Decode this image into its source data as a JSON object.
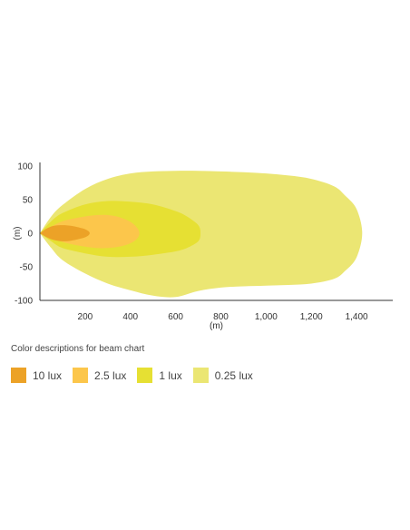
{
  "chart_data": {
    "type": "area",
    "title": "",
    "xlabel": "(m)",
    "ylabel": "(m)",
    "xlim": [
      0,
      1560
    ],
    "ylim": [
      -100,
      100
    ],
    "xticks": [
      200,
      400,
      600,
      800,
      1000,
      1200,
      1400
    ],
    "xtick_labels": [
      "200",
      "400",
      "600",
      "800",
      "1,000",
      "1,200",
      "1,400"
    ],
    "yticks": [
      100,
      50,
      0,
      -50,
      -100
    ],
    "ytick_labels": [
      "100",
      "50",
      "0",
      "-50",
      "-100"
    ],
    "grid": false,
    "series": [
      {
        "name": "0.25 lux",
        "color": "#ebe673",
        "x": [
          0,
          50,
          100,
          200,
          300,
          400,
          500,
          600,
          700,
          800,
          900,
          1000,
          1100,
          1200,
          1300,
          1350,
          1400,
          1425,
          1400,
          1350,
          1300,
          1200,
          1100,
          1000,
          900,
          800,
          700,
          600,
          500,
          400,
          300,
          200,
          100,
          50,
          0
        ],
        "y": [
          0,
          25,
          42,
          66,
          81,
          89,
          92,
          93,
          93,
          92,
          91,
          89,
          86,
          81,
          70,
          56,
          36,
          0,
          -36,
          -56,
          -68,
          -75,
          -77,
          -78,
          -79,
          -81,
          -86,
          -95,
          -93,
          -85,
          -75,
          -60,
          -40,
          -22,
          0
        ]
      },
      {
        "name": "1 lux",
        "color": "#e6e033",
        "x": [
          0,
          50,
          100,
          200,
          300,
          400,
          500,
          600,
          650,
          700,
          710,
          700,
          650,
          600,
          500,
          400,
          300,
          200,
          100,
          50,
          0
        ],
        "y": [
          0,
          18,
          30,
          43,
          48,
          47,
          43,
          33,
          25,
          12,
          0,
          -12,
          -22,
          -27,
          -32,
          -35,
          -35,
          -30,
          -22,
          -12,
          0
        ],
        "label": "1 lux"
      },
      {
        "name": "2.5 lux",
        "color": "#fcc64b",
        "x": [
          0,
          50,
          100,
          150,
          200,
          250,
          300,
          350,
          400,
          430,
          440,
          430,
          400,
          350,
          300,
          250,
          200,
          150,
          100,
          50,
          0
        ],
        "y": [
          0,
          10,
          18,
          22,
          25,
          27,
          27,
          24,
          17,
          8,
          0,
          -8,
          -15,
          -20,
          -22,
          -22,
          -20,
          -17,
          -13,
          -7,
          0
        ]
      },
      {
        "name": "10 lux",
        "color": "#eca227",
        "x": [
          0,
          30,
          60,
          100,
          140,
          180,
          200,
          215,
          220,
          215,
          200,
          180,
          140,
          100,
          60,
          30,
          0
        ],
        "y": [
          0,
          7,
          11,
          12,
          11,
          8,
          6,
          3,
          0,
          -3,
          -6,
          -8,
          -11,
          -12,
          -10,
          -6,
          0
        ]
      }
    ]
  },
  "legend": {
    "title": "Color descriptions for beam chart",
    "items": [
      {
        "label": "10 lux",
        "color": "#eca227"
      },
      {
        "label": "2.5 lux",
        "color": "#fcc64b"
      },
      {
        "label": "1 lux",
        "color": "#e6e033"
      },
      {
        "label": "0.25 lux",
        "color": "#ebe673"
      }
    ]
  }
}
